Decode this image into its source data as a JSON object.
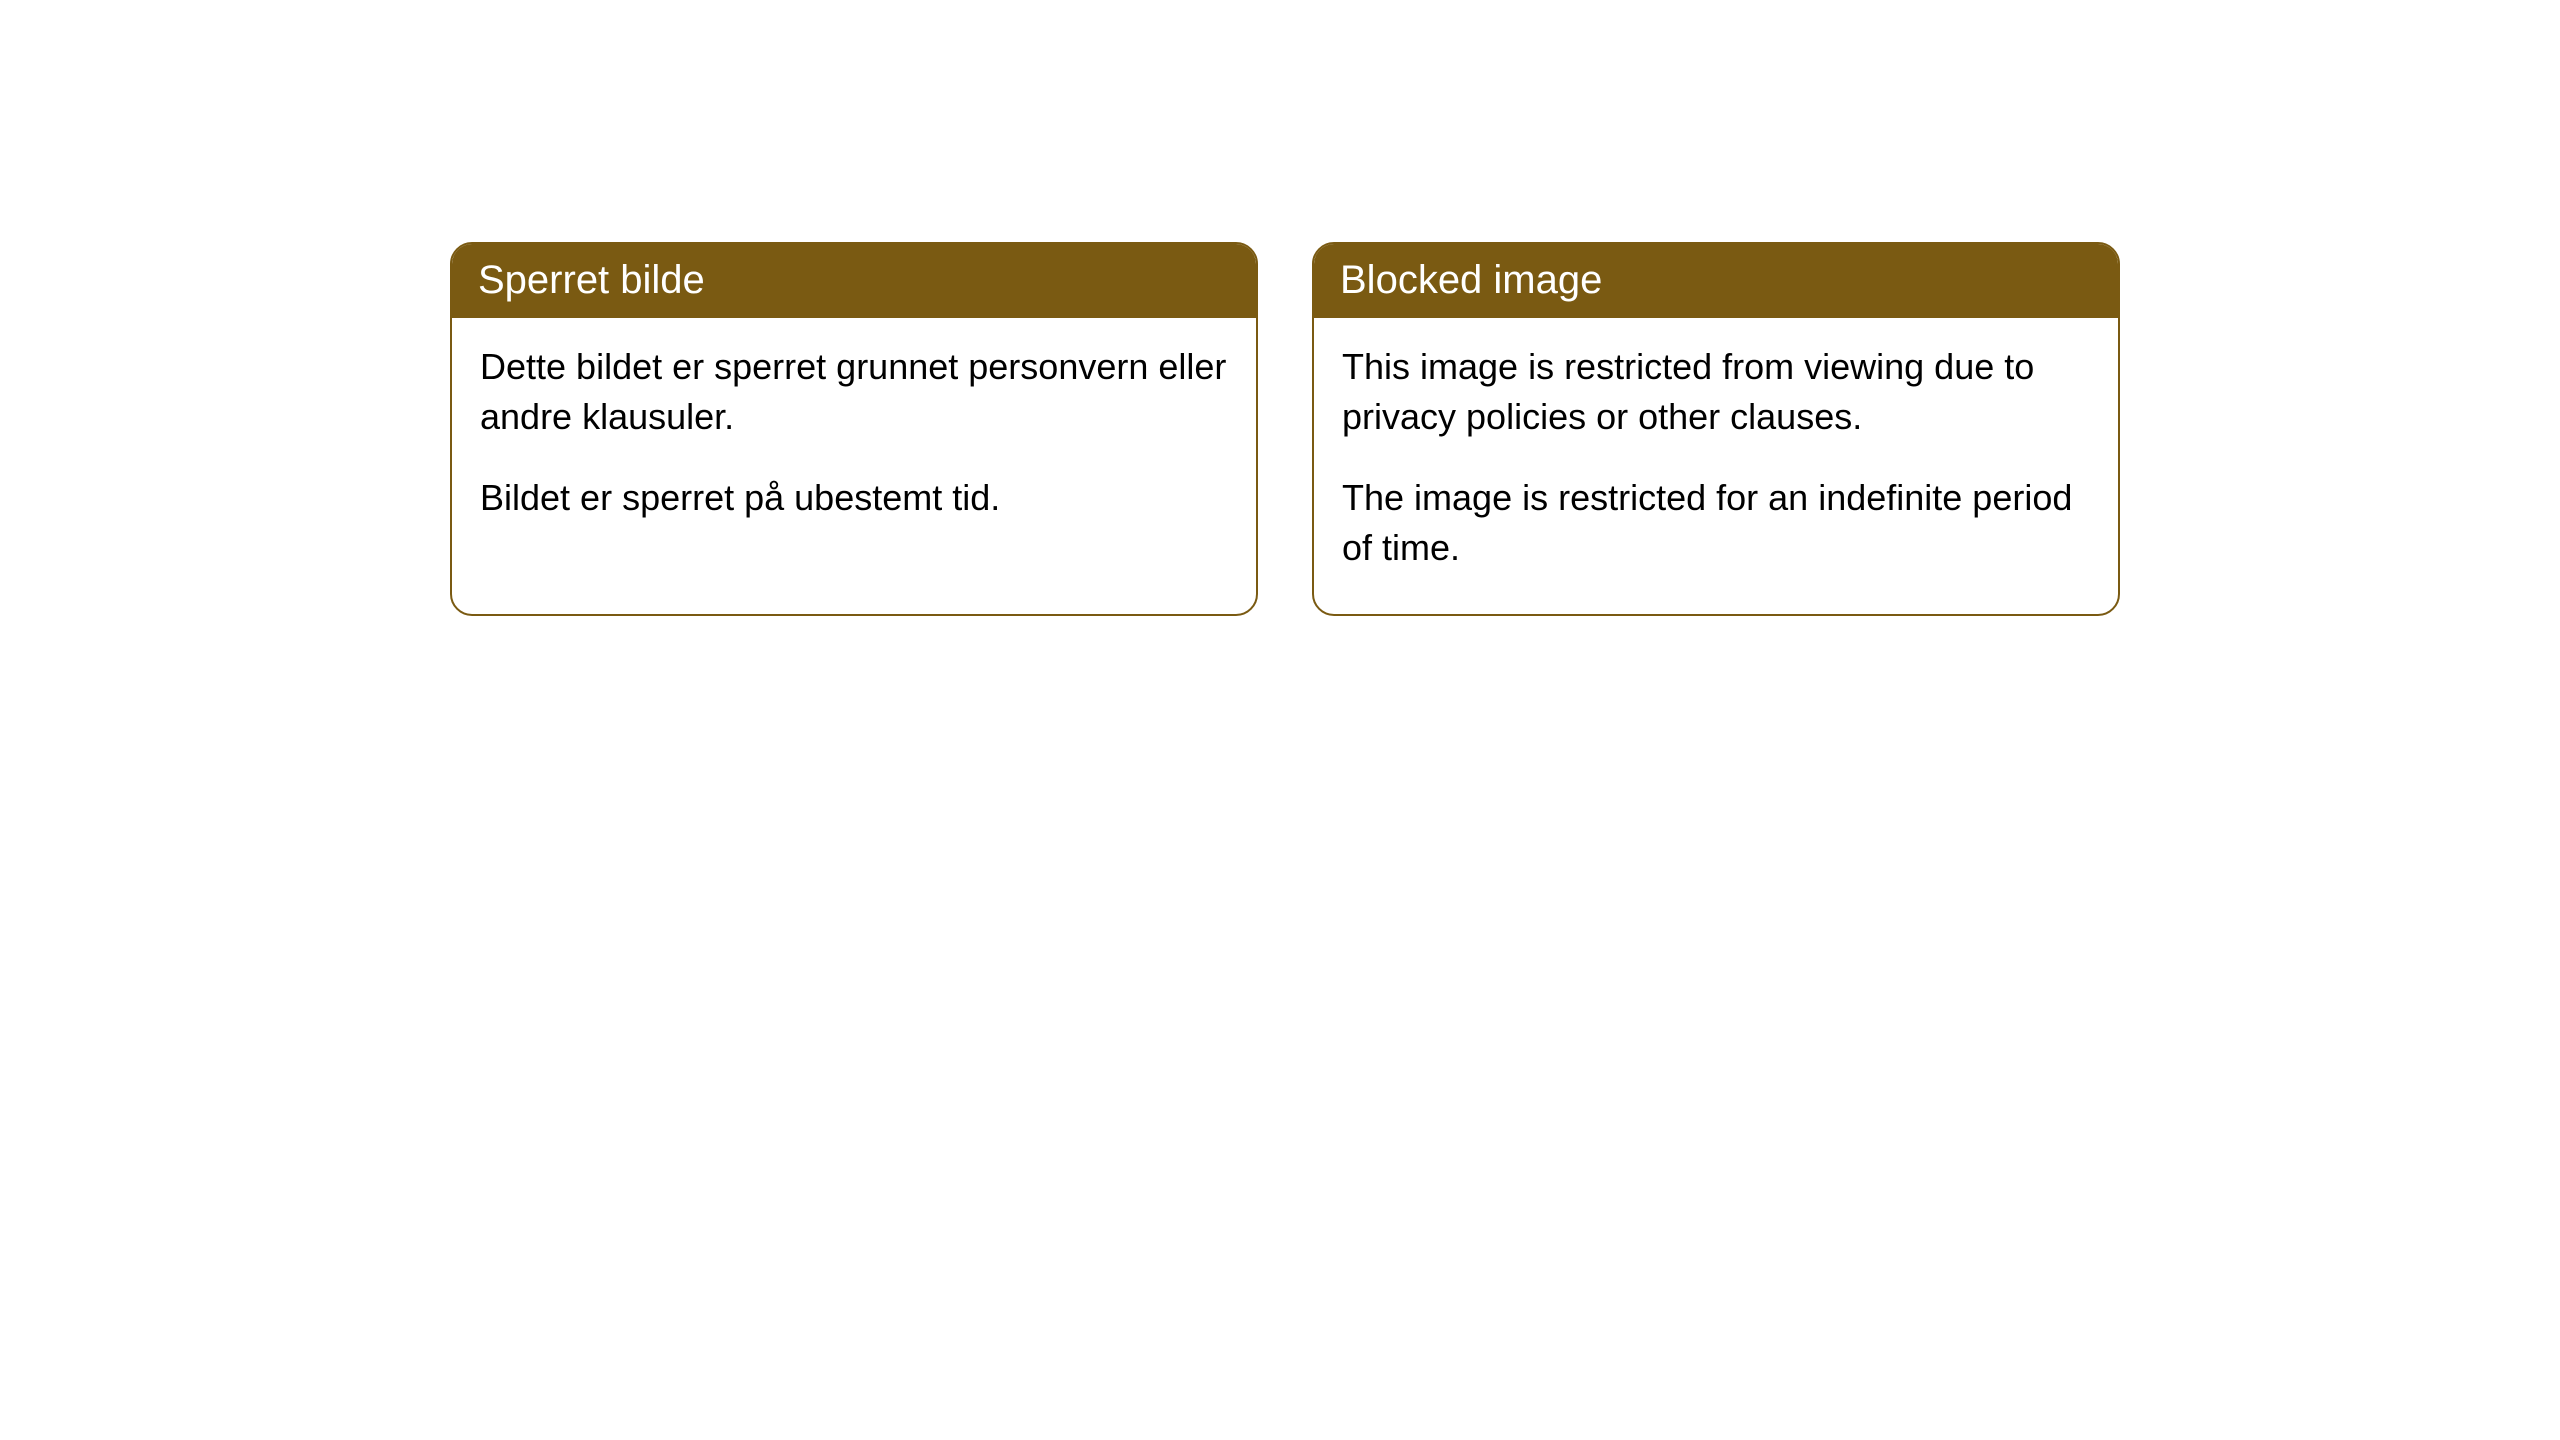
{
  "cards": [
    {
      "title": "Sperret bilde",
      "paragraph1": "Dette bildet er sperret grunnet personvern eller andre klausuler.",
      "paragraph2": "Bildet er sperret på ubestemt tid."
    },
    {
      "title": "Blocked image",
      "paragraph1": "This image is restricted from viewing due to privacy policies or other clauses.",
      "paragraph2": "The image is restricted for an indefinite period of time."
    }
  ],
  "style": {
    "header_bg_color": "#7a5a12",
    "header_text_color": "#ffffff",
    "border_color": "#7a5a12",
    "body_bg_color": "#ffffff",
    "body_text_color": "#000000",
    "border_radius": 22,
    "header_fontsize": 40,
    "body_fontsize": 36
  }
}
